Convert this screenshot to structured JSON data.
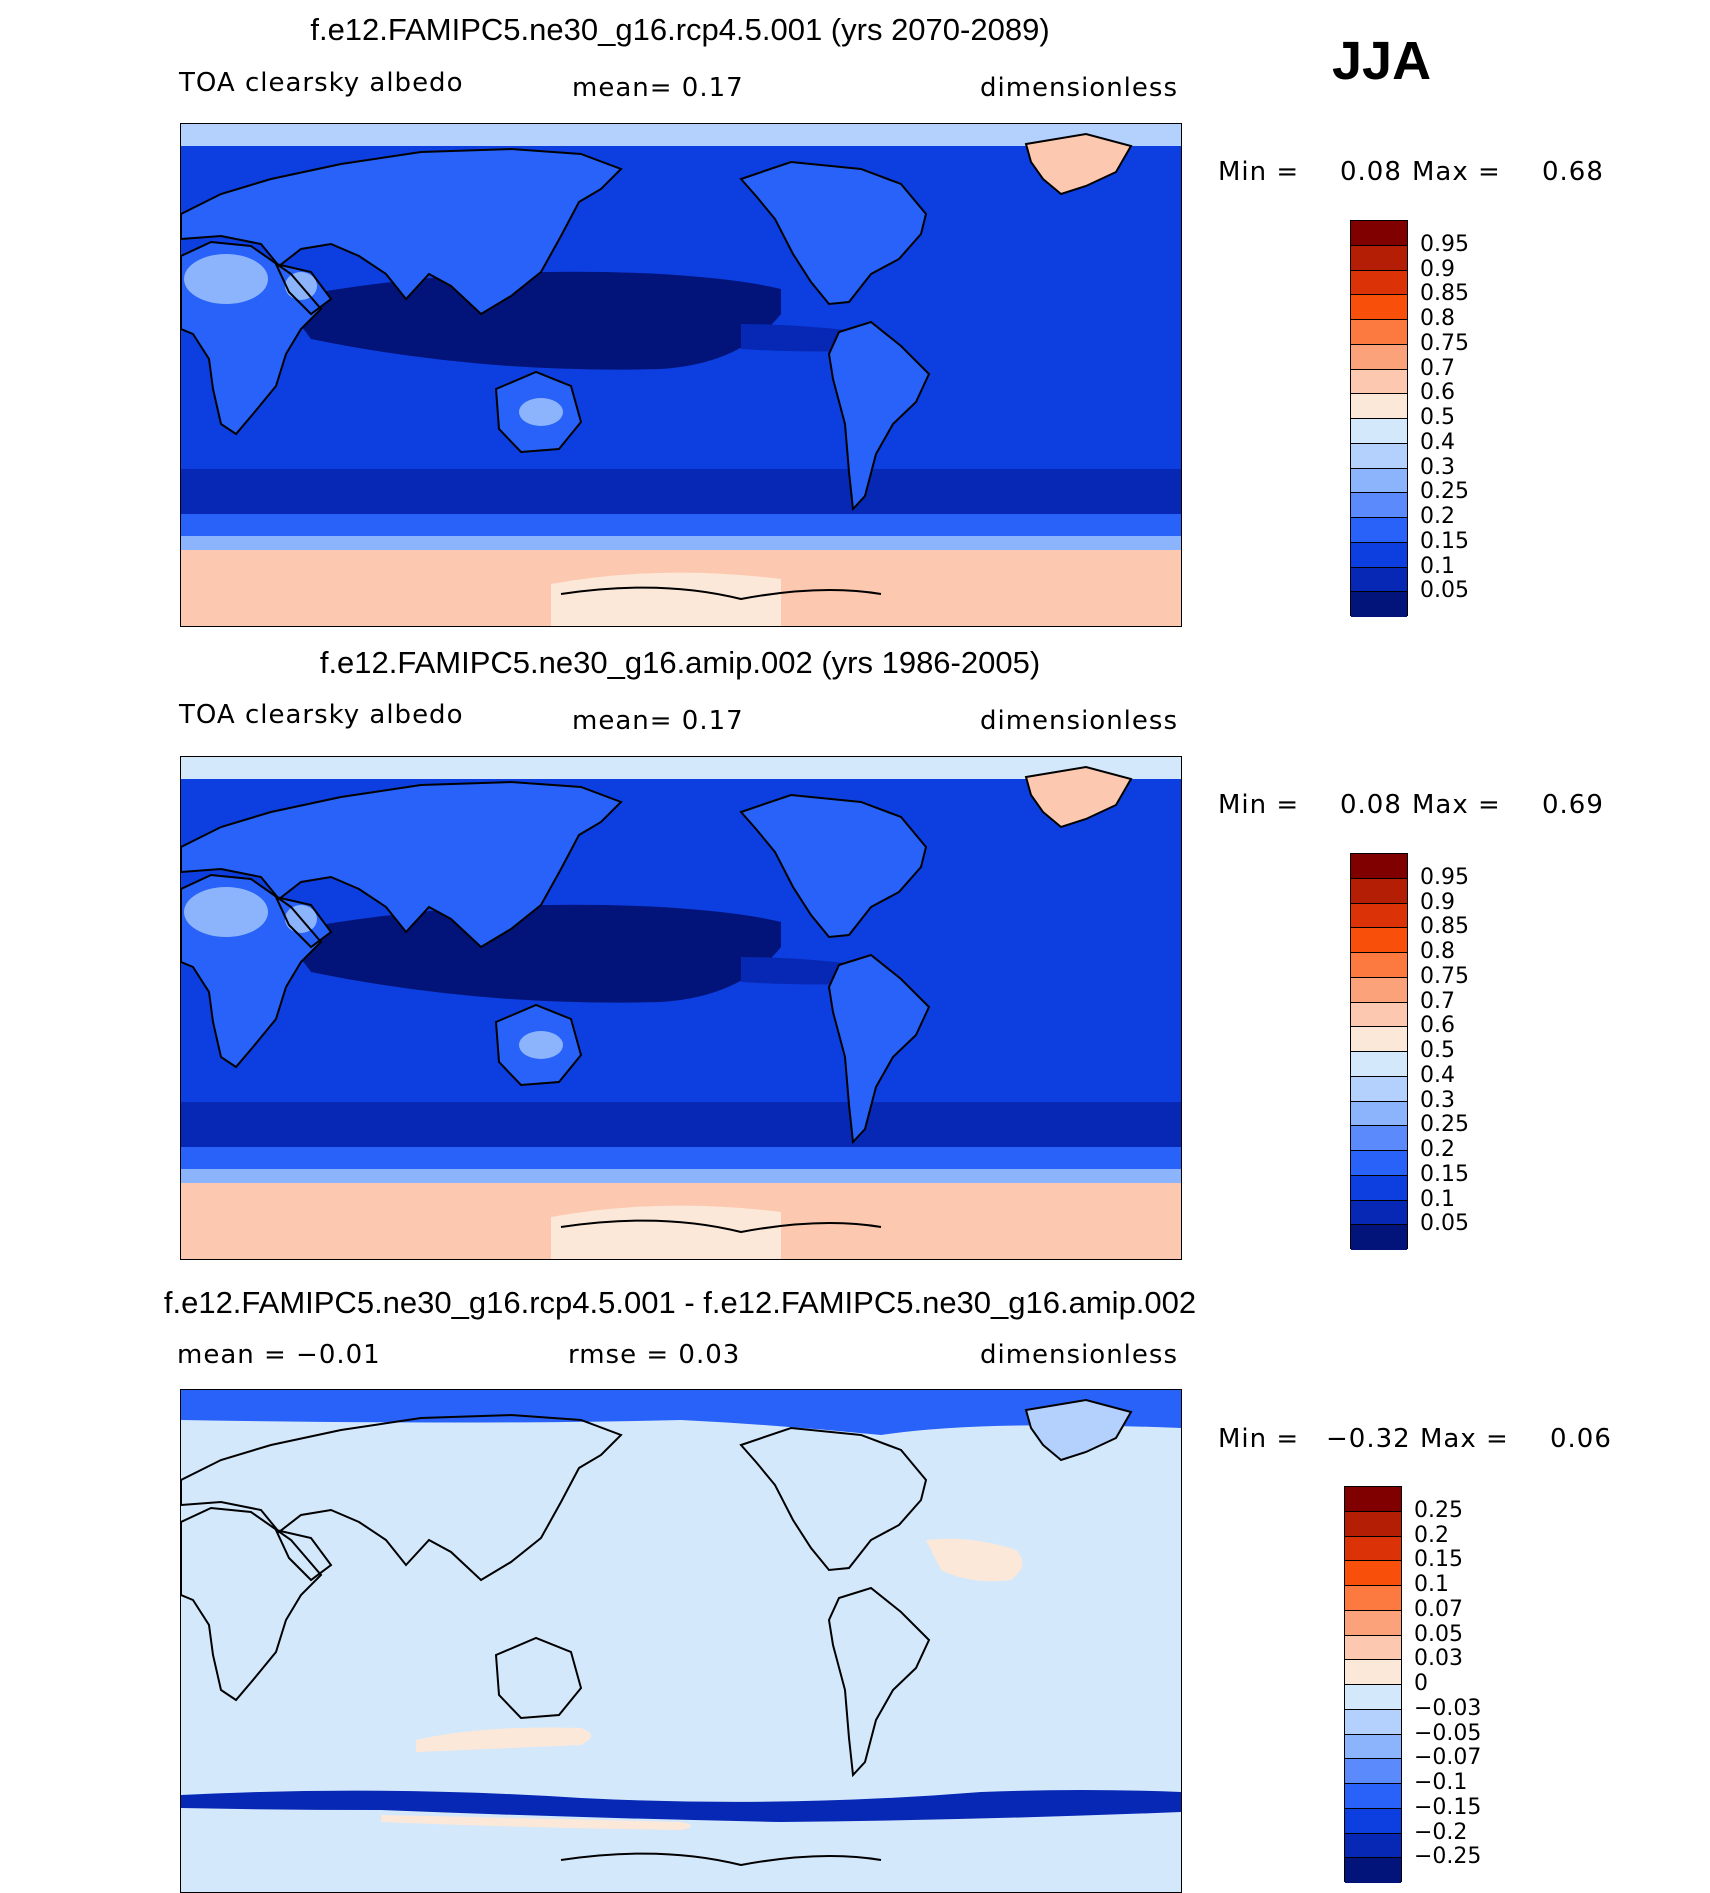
{
  "season": "JJA",
  "panels": [
    {
      "title": "f.e12.FAMIPC5.ne30_g16.rcp4.5.001 (yrs 2070-2089)",
      "left_label": "TOA clearsky albedo",
      "mid_label": "mean=    0.17",
      "units": "dimensionless",
      "min_label": "Min =",
      "min_value": "0.08",
      "max_label": "Max =",
      "max_value": "0.68",
      "colorbar": {
        "levels": [
          "0.95",
          "0.9",
          "0.85",
          "0.8",
          "0.75",
          "0.7",
          "0.6",
          "0.5",
          "0.4",
          "0.3",
          "0.25",
          "0.2",
          "0.15",
          "0.1",
          "0.05"
        ],
        "colors": [
          "#800000",
          "#b41e04",
          "#dc3208",
          "#f8500a",
          "#fc7a40",
          "#fca27a",
          "#fcc8b0",
          "#fce8d8",
          "#d4e8fc",
          "#b4d0fc",
          "#8cb4fc",
          "#5a8afc",
          "#2862f8",
          "#0d3fe0",
          "#0628b4",
          "#02147a"
        ]
      },
      "map": {
        "kind": "mean",
        "ocean_color": "#0628b4",
        "tropic_ocean_color": "#02147a",
        "midlat_ocean_color": "#0d3fe0",
        "land_color": "#2862f8",
        "desert_color": "#8cb4fc",
        "sea_ice_color": "#b4d0fc",
        "antarctic_color": "#fcc8b0",
        "antarctic_core_color": "#fce8d8",
        "greenland_color": "#fcc8b0"
      }
    },
    {
      "title": "f.e12.FAMIPC5.ne30_g16.amip.002 (yrs 1986-2005)",
      "left_label": "TOA clearsky albedo",
      "mid_label": "mean=    0.17",
      "units": "dimensionless",
      "min_label": "Min =",
      "min_value": "0.08",
      "max_label": "Max =",
      "max_value": "0.69",
      "colorbar": {
        "levels": [
          "0.95",
          "0.9",
          "0.85",
          "0.8",
          "0.75",
          "0.7",
          "0.6",
          "0.5",
          "0.4",
          "0.3",
          "0.25",
          "0.2",
          "0.15",
          "0.1",
          "0.05"
        ],
        "colors": [
          "#800000",
          "#b41e04",
          "#dc3208",
          "#f8500a",
          "#fc7a40",
          "#fca27a",
          "#fcc8b0",
          "#fce8d8",
          "#d4e8fc",
          "#b4d0fc",
          "#8cb4fc",
          "#5a8afc",
          "#2862f8",
          "#0d3fe0",
          "#0628b4",
          "#02147a"
        ]
      },
      "map": {
        "kind": "mean",
        "ocean_color": "#0628b4",
        "tropic_ocean_color": "#02147a",
        "midlat_ocean_color": "#0d3fe0",
        "land_color": "#2862f8",
        "desert_color": "#8cb4fc",
        "sea_ice_color": "#d4e8fc",
        "antarctic_color": "#fcc8b0",
        "antarctic_core_color": "#fce8d8",
        "greenland_color": "#fcc8b0"
      }
    },
    {
      "title": "f.e12.FAMIPC5.ne30_g16.rcp4.5.001 - f.e12.FAMIPC5.ne30_g16.amip.002",
      "left_label": "mean =   −0.01",
      "mid_label": "rmse =    0.03",
      "units": "dimensionless",
      "min_label": "Min =",
      "min_value": "−0.32",
      "max_label": "Max =",
      "max_value": "0.06",
      "colorbar": {
        "levels": [
          "0.25",
          "0.2",
          "0.15",
          "0.1",
          "0.07",
          "0.05",
          "0.03",
          "0",
          "−0.03",
          "−0.05",
          "−0.07",
          "−0.1",
          "−0.15",
          "−0.2",
          "−0.25"
        ],
        "colors": [
          "#800000",
          "#b41e04",
          "#dc3208",
          "#f8500a",
          "#fc7a40",
          "#fca27a",
          "#fcc8b0",
          "#fce8d8",
          "#d4e8fc",
          "#b4d0fc",
          "#8cb4fc",
          "#5a8afc",
          "#2862f8",
          "#0d3fe0",
          "#0628b4",
          "#02147a"
        ]
      },
      "map": {
        "kind": "diff",
        "background_color": "#d4e8fc",
        "arctic_color": "#2862f8",
        "southern_band_color": "#0628b4",
        "positive_color": "#fce8d8"
      }
    }
  ]
}
